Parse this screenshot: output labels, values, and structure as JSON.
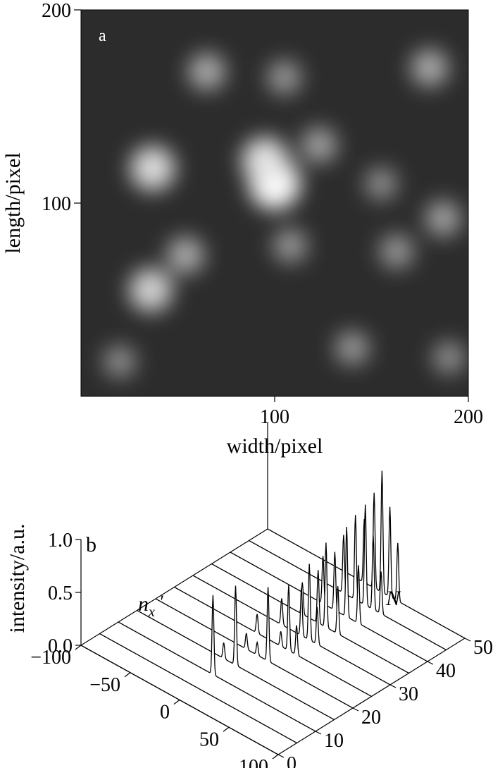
{
  "chart_data": [
    {
      "type": "heatmap",
      "panel_label": "a",
      "xlabel": "width/pixel",
      "ylabel": "length/pixel",
      "xlim": [
        0,
        200
      ],
      "ylim": [
        0,
        200
      ],
      "x_ticks": [
        100,
        200
      ],
      "y_ticks": [
        100,
        200
      ],
      "colormap": "grayscale",
      "bright_spots": [
        {
          "x": 100,
          "y": 110,
          "intensity": 1.0
        },
        {
          "x": 95,
          "y": 122,
          "intensity": 0.85
        },
        {
          "x": 37,
          "y": 118,
          "intensity": 0.8
        },
        {
          "x": 36,
          "y": 55,
          "intensity": 0.75
        },
        {
          "x": 54,
          "y": 73,
          "intensity": 0.55
        },
        {
          "x": 65,
          "y": 168,
          "intensity": 0.55
        },
        {
          "x": 180,
          "y": 170,
          "intensity": 0.55
        },
        {
          "x": 123,
          "y": 130,
          "intensity": 0.5
        },
        {
          "x": 187,
          "y": 92,
          "intensity": 0.5
        },
        {
          "x": 140,
          "y": 25,
          "intensity": 0.45
        },
        {
          "x": 163,
          "y": 75,
          "intensity": 0.45
        },
        {
          "x": 108,
          "y": 78,
          "intensity": 0.45
        },
        {
          "x": 190,
          "y": 20,
          "intensity": 0.4
        },
        {
          "x": 20,
          "y": 18,
          "intensity": 0.4
        },
        {
          "x": 155,
          "y": 110,
          "intensity": 0.4
        },
        {
          "x": 105,
          "y": 165,
          "intensity": 0.45
        }
      ]
    },
    {
      "type": "line",
      "panel_label": "b",
      "style": "3D waterfall",
      "zlabel": "intensity/a.u.",
      "xlabel": "n",
      "xlabel_sub": "x",
      "xlabel_prime": "′",
      "ylabel": "N",
      "x_range": [
        -100,
        100
      ],
      "x_ticks": [
        "−100",
        "−50",
        "0",
        "50",
        "100"
      ],
      "N_range": [
        0,
        50
      ],
      "N_ticks": [
        "0",
        "10",
        "20",
        "30",
        "40",
        "50"
      ],
      "z_range": [
        0,
        1
      ],
      "z_ticks": [
        "0.0",
        "0.5",
        "1.0"
      ],
      "series": [
        {
          "N": 0,
          "peaks": []
        },
        {
          "N": 5,
          "peaks": []
        },
        {
          "N": 10,
          "peaks": [
            {
              "x": -4,
              "h": 0.75
            }
          ]
        },
        {
          "N": 15,
          "peaks": [
            {
              "x": -12,
              "h": 0.15
            },
            {
              "x": 0,
              "h": 0.75
            }
          ]
        },
        {
          "N": 20,
          "peaks": [
            {
              "x": -8,
              "h": 0.15
            },
            {
              "x": 3,
              "h": 0.12
            },
            {
              "x": 14,
              "h": 0.7
            }
          ]
        },
        {
          "N": 25,
          "peaks": [
            {
              "x": -16,
              "h": 0.18
            },
            {
              "x": 8,
              "h": 0.14
            },
            {
              "x": 16,
              "h": 0.62
            },
            {
              "x": 24,
              "h": 0.28
            }
          ]
        },
        {
          "N": 30,
          "peaks": [
            {
              "x": -10,
              "h": 0.25
            },
            {
              "x": 10,
              "h": 0.45
            },
            {
              "x": 18,
              "h": 0.72
            },
            {
              "x": 26,
              "h": 0.35
            }
          ]
        },
        {
          "N": 35,
          "peaks": [
            {
              "x": -8,
              "h": 0.3
            },
            {
              "x": 8,
              "h": 0.5
            },
            {
              "x": 16,
              "h": 0.8
            },
            {
              "x": 28,
              "h": 0.45
            }
          ]
        },
        {
          "N": 40,
          "peaks": [
            {
              "x": -6,
              "h": 0.45
            },
            {
              "x": 6,
              "h": 0.55
            },
            {
              "x": 18,
              "h": 0.85
            },
            {
              "x": 30,
              "h": 0.55
            }
          ]
        },
        {
          "N": 45,
          "peaks": [
            {
              "x": -4,
              "h": 0.55
            },
            {
              "x": 8,
              "h": 0.8
            },
            {
              "x": 18,
              "h": 0.95
            },
            {
              "x": 26,
              "h": 0.7
            },
            {
              "x": 34,
              "h": 0.4
            }
          ]
        },
        {
          "N": 50,
          "peaks": [
            {
              "x": -2,
              "h": 0.6
            },
            {
              "x": 8,
              "h": 0.9
            },
            {
              "x": 16,
              "h": 1.15
            },
            {
              "x": 24,
              "h": 0.85
            },
            {
              "x": 32,
              "h": 0.55
            }
          ]
        }
      ]
    }
  ]
}
